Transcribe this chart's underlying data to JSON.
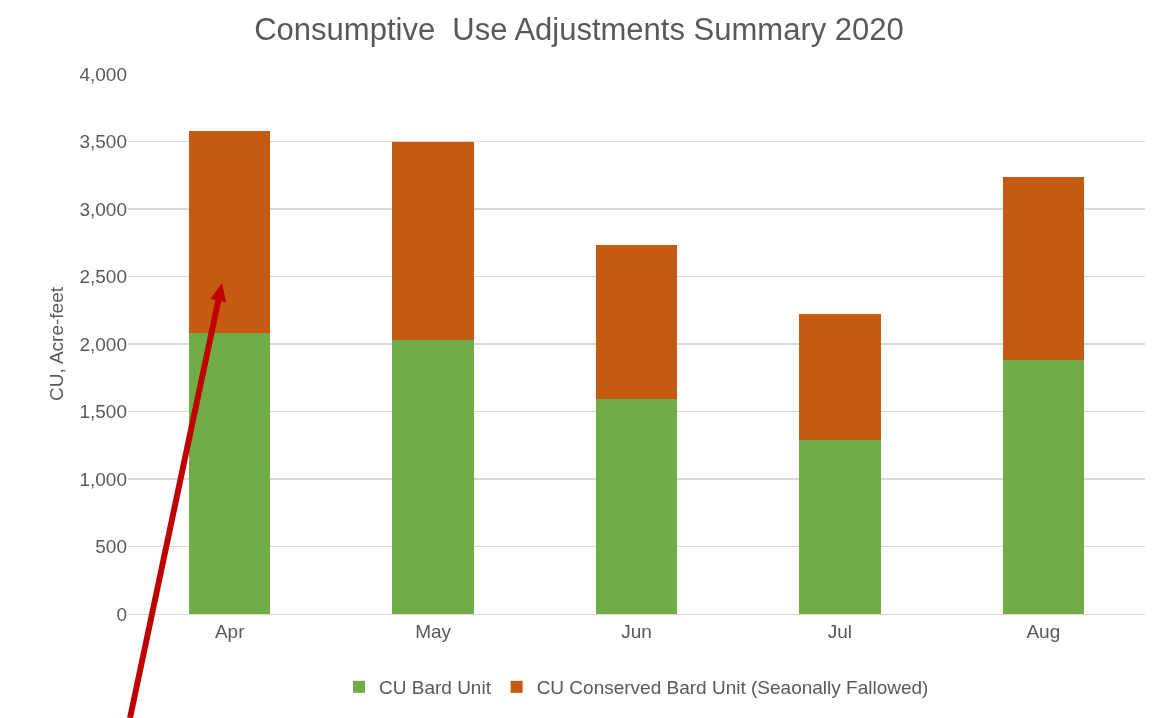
{
  "chart_data": {
    "type": "bar",
    "title": "Consumptive  Use Adjustments Summary 2020",
    "ylabel": "CU, Acre-feet",
    "categories": [
      "Apr",
      "May",
      "Jun",
      "Jul",
      "Aug"
    ],
    "series": [
      {
        "name": "CU Bard Unit",
        "color": "#70ad47",
        "values": [
          2080,
          2030,
          1590,
          1290,
          1880
        ]
      },
      {
        "name": "CU Conserved Bard Unit (Seaonally Fallowed)",
        "color": "#c55a11",
        "values": [
          1500,
          1470,
          1140,
          930,
          1360
        ]
      }
    ],
    "stacked": true,
    "ylim": [
      0,
      4000
    ],
    "yticks": [
      {
        "value": 0,
        "label": "0"
      },
      {
        "value": 500,
        "label": "500"
      },
      {
        "value": 1000,
        "label": "1,000"
      },
      {
        "value": 1500,
        "label": "1,500"
      },
      {
        "value": 2000,
        "label": "2,000"
      },
      {
        "value": 2500,
        "label": "2,500"
      },
      {
        "value": 3000,
        "label": "3,000"
      },
      {
        "value": 3500,
        "label": "3,500"
      },
      {
        "value": 4000,
        "label": "4,000"
      }
    ],
    "grid": "y",
    "legend": "bottom"
  }
}
